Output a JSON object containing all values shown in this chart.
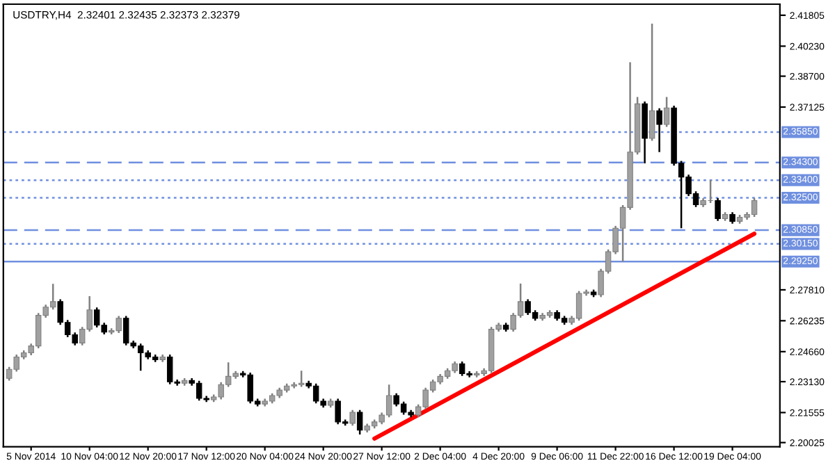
{
  "chart_data": {
    "type": "candlestick",
    "title": "USDTRY,H4  2.32401 2.32435 2.32373 2.32379",
    "categories": [
      null,
      null,
      null,
      "5 Nov 2014",
      null,
      null,
      null,
      null,
      null,
      null,
      null,
      "10 Nov 04:00",
      null,
      null,
      null,
      null,
      null,
      null,
      null,
      "12 Nov 20:00",
      null,
      null,
      null,
      null,
      null,
      null,
      null,
      "17 Nov 12:00",
      null,
      null,
      null,
      null,
      null,
      null,
      null,
      "20 Nov 04:00",
      null,
      null,
      null,
      null,
      null,
      null,
      null,
      "24 Nov 20:00",
      null,
      null,
      null,
      null,
      null,
      null,
      null,
      "27 Nov 12:00",
      null,
      null,
      null,
      null,
      null,
      null,
      null,
      "2 Dec 04:00",
      null,
      null,
      null,
      null,
      null,
      null,
      null,
      "4 Dec 20:00",
      null,
      null,
      null,
      null,
      null,
      null,
      null,
      "9 Dec 06:00",
      null,
      null,
      null,
      null,
      null,
      null,
      null,
      "11 Dec 22:00",
      null,
      null,
      null,
      null,
      null,
      null,
      null,
      "16 Dec 12:00",
      null,
      null,
      null,
      null,
      null,
      null,
      null,
      "19 Dec 04:00",
      null,
      null,
      null
    ],
    "ohlc": [
      [
        2.233,
        2.2388,
        2.2318,
        2.2376
      ],
      [
        2.2376,
        2.2451,
        2.2364,
        2.2439
      ],
      [
        2.2439,
        2.2472,
        2.2427,
        2.246
      ],
      [
        2.246,
        2.2507,
        2.2448,
        2.2495
      ],
      [
        2.2495,
        2.2663,
        2.2483,
        2.2651
      ],
      [
        2.2651,
        2.2705,
        2.2639,
        2.2693
      ],
      [
        2.2693,
        2.2812,
        2.2681,
        2.2721
      ],
      [
        2.2721,
        2.2733,
        2.2603,
        2.2615
      ],
      [
        2.2615,
        2.2627,
        2.254,
        2.2552
      ],
      [
        2.2552,
        2.2564,
        2.2498,
        2.251
      ],
      [
        2.251,
        2.2592,
        2.2498,
        2.258
      ],
      [
        2.258,
        2.2749,
        2.2568,
        2.2679
      ],
      [
        2.2679,
        2.2691,
        2.2589,
        2.2601
      ],
      [
        2.2601,
        2.2613,
        2.2554,
        2.2566
      ],
      [
        2.2566,
        2.2585,
        2.2554,
        2.2573
      ],
      [
        2.2573,
        2.2648,
        2.2561,
        2.2636
      ],
      [
        2.2636,
        2.2648,
        2.2498,
        2.251
      ],
      [
        2.251,
        2.2522,
        2.2483,
        2.2495
      ],
      [
        2.2495,
        2.2507,
        2.2369,
        2.246
      ],
      [
        2.246,
        2.2472,
        2.2427,
        2.2439
      ],
      [
        2.2439,
        2.2451,
        2.2413,
        2.2425
      ],
      [
        2.2425,
        2.2451,
        2.2413,
        2.2439
      ],
      [
        2.2439,
        2.2451,
        2.23,
        2.2312
      ],
      [
        2.2312,
        2.2324,
        2.2293,
        2.2305
      ],
      [
        2.2305,
        2.2331,
        2.2293,
        2.2319
      ],
      [
        2.2319,
        2.2331,
        2.2293,
        2.2305
      ],
      [
        2.2305,
        2.2317,
        2.2216,
        2.2228
      ],
      [
        2.2228,
        2.224,
        2.2209,
        2.2221
      ],
      [
        2.2221,
        2.2247,
        2.2209,
        2.2235
      ],
      [
        2.2235,
        2.231,
        2.2223,
        2.2298
      ],
      [
        2.2298,
        2.2411,
        2.2286,
        2.234
      ],
      [
        2.234,
        2.2367,
        2.2328,
        2.2355
      ],
      [
        2.2355,
        2.2367,
        2.2335,
        2.2347
      ],
      [
        2.2347,
        2.2359,
        2.2202,
        2.2214
      ],
      [
        2.2214,
        2.2226,
        2.2187,
        2.2199
      ],
      [
        2.2199,
        2.2226,
        2.2187,
        2.2214
      ],
      [
        2.2214,
        2.2254,
        2.2202,
        2.2242
      ],
      [
        2.2242,
        2.2282,
        2.223,
        2.227
      ],
      [
        2.227,
        2.2303,
        2.2258,
        2.2291
      ],
      [
        2.2291,
        2.231,
        2.2279,
        2.2298
      ],
      [
        2.2298,
        2.2369,
        2.2286,
        2.2305
      ],
      [
        2.2305,
        2.2317,
        2.2279,
        2.2291
      ],
      [
        2.2291,
        2.2303,
        2.2202,
        2.2214
      ],
      [
        2.2214,
        2.2226,
        2.2181,
        2.2193
      ],
      [
        2.2193,
        2.2226,
        2.2181,
        2.2214
      ],
      [
        2.2214,
        2.2226,
        2.2096,
        2.2108
      ],
      [
        2.2108,
        2.212,
        2.2089,
        2.2101
      ],
      [
        2.2101,
        2.2169,
        2.2089,
        2.2157
      ],
      [
        2.2157,
        2.2169,
        2.2044,
        2.2066
      ],
      [
        2.2066,
        2.2099,
        2.2054,
        2.2087
      ],
      [
        2.2087,
        2.212,
        2.2075,
        2.2108
      ],
      [
        2.2108,
        2.2155,
        2.2096,
        2.2143
      ],
      [
        2.2143,
        2.2298,
        2.2131,
        2.2242
      ],
      [
        2.2242,
        2.2254,
        2.2187,
        2.2199
      ],
      [
        2.2199,
        2.2211,
        2.2145,
        2.2157
      ],
      [
        2.2157,
        2.2169,
        2.2131,
        2.2143
      ],
      [
        2.2143,
        2.2197,
        2.2131,
        2.2185
      ],
      [
        2.2185,
        2.2282,
        2.2173,
        2.227
      ],
      [
        2.227,
        2.2324,
        2.2258,
        2.2312
      ],
      [
        2.2312,
        2.2352,
        2.23,
        2.234
      ],
      [
        2.234,
        2.2381,
        2.2328,
        2.2369
      ],
      [
        2.2369,
        2.2416,
        2.2357,
        2.2404
      ],
      [
        2.2404,
        2.2416,
        2.2342,
        2.2354
      ],
      [
        2.2354,
        2.2366,
        2.2335,
        2.2347
      ],
      [
        2.2347,
        2.2366,
        2.2335,
        2.2354
      ],
      [
        2.2354,
        2.2381,
        2.2342,
        2.2369
      ],
      [
        2.2369,
        2.2592,
        2.2357,
        2.258
      ],
      [
        2.258,
        2.2613,
        2.2568,
        2.2601
      ],
      [
        2.2601,
        2.2613,
        2.2568,
        2.258
      ],
      [
        2.258,
        2.2663,
        2.2568,
        2.2651
      ],
      [
        2.2651,
        2.2813,
        2.2639,
        2.2721
      ],
      [
        2.2721,
        2.2733,
        2.2653,
        2.2665
      ],
      [
        2.2665,
        2.2677,
        2.2624,
        2.2636
      ],
      [
        2.2636,
        2.2663,
        2.2624,
        2.2651
      ],
      [
        2.2651,
        2.2677,
        2.2639,
        2.2665
      ],
      [
        2.2665,
        2.2677,
        2.2624,
        2.2636
      ],
      [
        2.2636,
        2.2648,
        2.2603,
        2.2615
      ],
      [
        2.2615,
        2.2648,
        2.2603,
        2.2636
      ],
      [
        2.2636,
        2.2775,
        2.2624,
        2.2763
      ],
      [
        2.2763,
        2.2782,
        2.2751,
        2.277
      ],
      [
        2.277,
        2.2782,
        2.2744,
        2.2756
      ],
      [
        2.2756,
        2.2888,
        2.2744,
        2.2876
      ],
      [
        2.2876,
        2.2987,
        2.2864,
        2.2975
      ],
      [
        2.2975,
        2.3107,
        2.2963,
        2.3095
      ],
      [
        2.3095,
        2.3213,
        2.2925,
        2.3201
      ],
      [
        2.3201,
        2.3941,
        2.3189,
        2.3483
      ],
      [
        2.3483,
        2.3764,
        2.3471,
        2.3729
      ],
      [
        2.3729,
        2.3741,
        2.3426,
        2.3553
      ],
      [
        2.3553,
        2.4138,
        2.3541,
        2.3694
      ],
      [
        2.3694,
        2.3706,
        2.3483,
        2.3624
      ],
      [
        2.3624,
        2.3764,
        2.3612,
        2.3708
      ],
      [
        2.3708,
        2.372,
        2.3414,
        2.3426
      ],
      [
        2.3426,
        2.3438,
        2.3095,
        2.3356
      ],
      [
        2.3356,
        2.3368,
        2.3259,
        2.3271
      ],
      [
        2.3271,
        2.3283,
        2.3203,
        2.3215
      ],
      [
        2.3215,
        2.3248,
        2.3203,
        2.3236
      ],
      [
        2.3236,
        2.3341,
        2.3224,
        2.3236
      ],
      [
        2.3236,
        2.3248,
        2.3132,
        2.3144
      ],
      [
        2.3144,
        2.3177,
        2.3132,
        2.3165
      ],
      [
        2.3165,
        2.3177,
        2.3118,
        2.313
      ],
      [
        2.313,
        2.3163,
        2.3118,
        2.3151
      ],
      [
        2.3151,
        2.3177,
        2.3139,
        2.3165
      ],
      [
        2.3165,
        2.3248,
        2.3153,
        2.3236
      ]
    ],
    "series": [
      {
        "type": "line",
        "values": [
          null,
          null,
          null,
          null,
          null,
          null,
          null,
          null,
          null,
          null,
          null,
          null,
          null,
          null,
          null,
          null,
          null,
          null,
          null,
          null,
          null,
          null,
          null,
          null,
          null,
          null,
          null,
          null,
          null,
          null,
          null,
          null,
          null,
          null,
          null,
          null,
          null,
          null,
          null,
          null,
          null,
          null,
          null,
          null,
          null,
          null,
          null,
          null,
          null,
          null,
          2.2023,
          null,
          null,
          null,
          null,
          null,
          null,
          null,
          null,
          null,
          null,
          null,
          null,
          null,
          null,
          null,
          null,
          null,
          null,
          null,
          null,
          null,
          null,
          null,
          null,
          null,
          null,
          null,
          null,
          null,
          null,
          null,
          null,
          null,
          null,
          null,
          null,
          null,
          null,
          null,
          null,
          null,
          null,
          null,
          null,
          null,
          null,
          null,
          null,
          null,
          null,
          null,
          2.3067
        ],
        "color": "#ff0000"
      }
    ],
    "ylim": [
      2.1981,
      2.4237
    ],
    "yticks": [
      {
        "value": 2.41805,
        "label": "2.41805"
      },
      {
        "value": 2.4023,
        "label": "2.40230"
      },
      {
        "value": 2.387,
        "label": "2.38700"
      },
      {
        "value": 2.37125,
        "label": "2.37125"
      },
      {
        "value": 2.2781,
        "label": "2.27810"
      },
      {
        "value": 2.26235,
        "label": "2.26235"
      },
      {
        "value": 2.2466,
        "label": "2.24660"
      },
      {
        "value": 2.2313,
        "label": "2.23130"
      },
      {
        "value": 2.21555,
        "label": "2.21555"
      },
      {
        "value": 2.20025,
        "label": "2.20025"
      }
    ],
    "ref_lines": [
      {
        "axis": "y",
        "value": 2.3585,
        "label": "2.35850",
        "color": "#6f8fdf",
        "line_style": "dotted"
      },
      {
        "axis": "y",
        "value": 2.343,
        "label": "2.34300",
        "color": "#6f8fdf",
        "line_style": "dashed"
      },
      {
        "axis": "y",
        "value": 2.334,
        "label": "2.33400",
        "color": "#6f8fdf",
        "line_style": "dotted"
      },
      {
        "axis": "y",
        "value": 2.325,
        "label": "2.32500",
        "color": "#6f8fdf",
        "line_style": "dotted"
      },
      {
        "axis": "y",
        "value": 2.3085,
        "label": "2.30850",
        "color": "#6f8fdf",
        "line_style": "dashed"
      },
      {
        "axis": "y",
        "value": 2.3015,
        "label": "2.30150",
        "color": "#6f8fdf",
        "line_style": "dotted"
      },
      {
        "axis": "y",
        "value": 2.2925,
        "label": "2.29250",
        "color": "#6f8fdf",
        "line_style": "solid"
      }
    ],
    "grid": false
  }
}
